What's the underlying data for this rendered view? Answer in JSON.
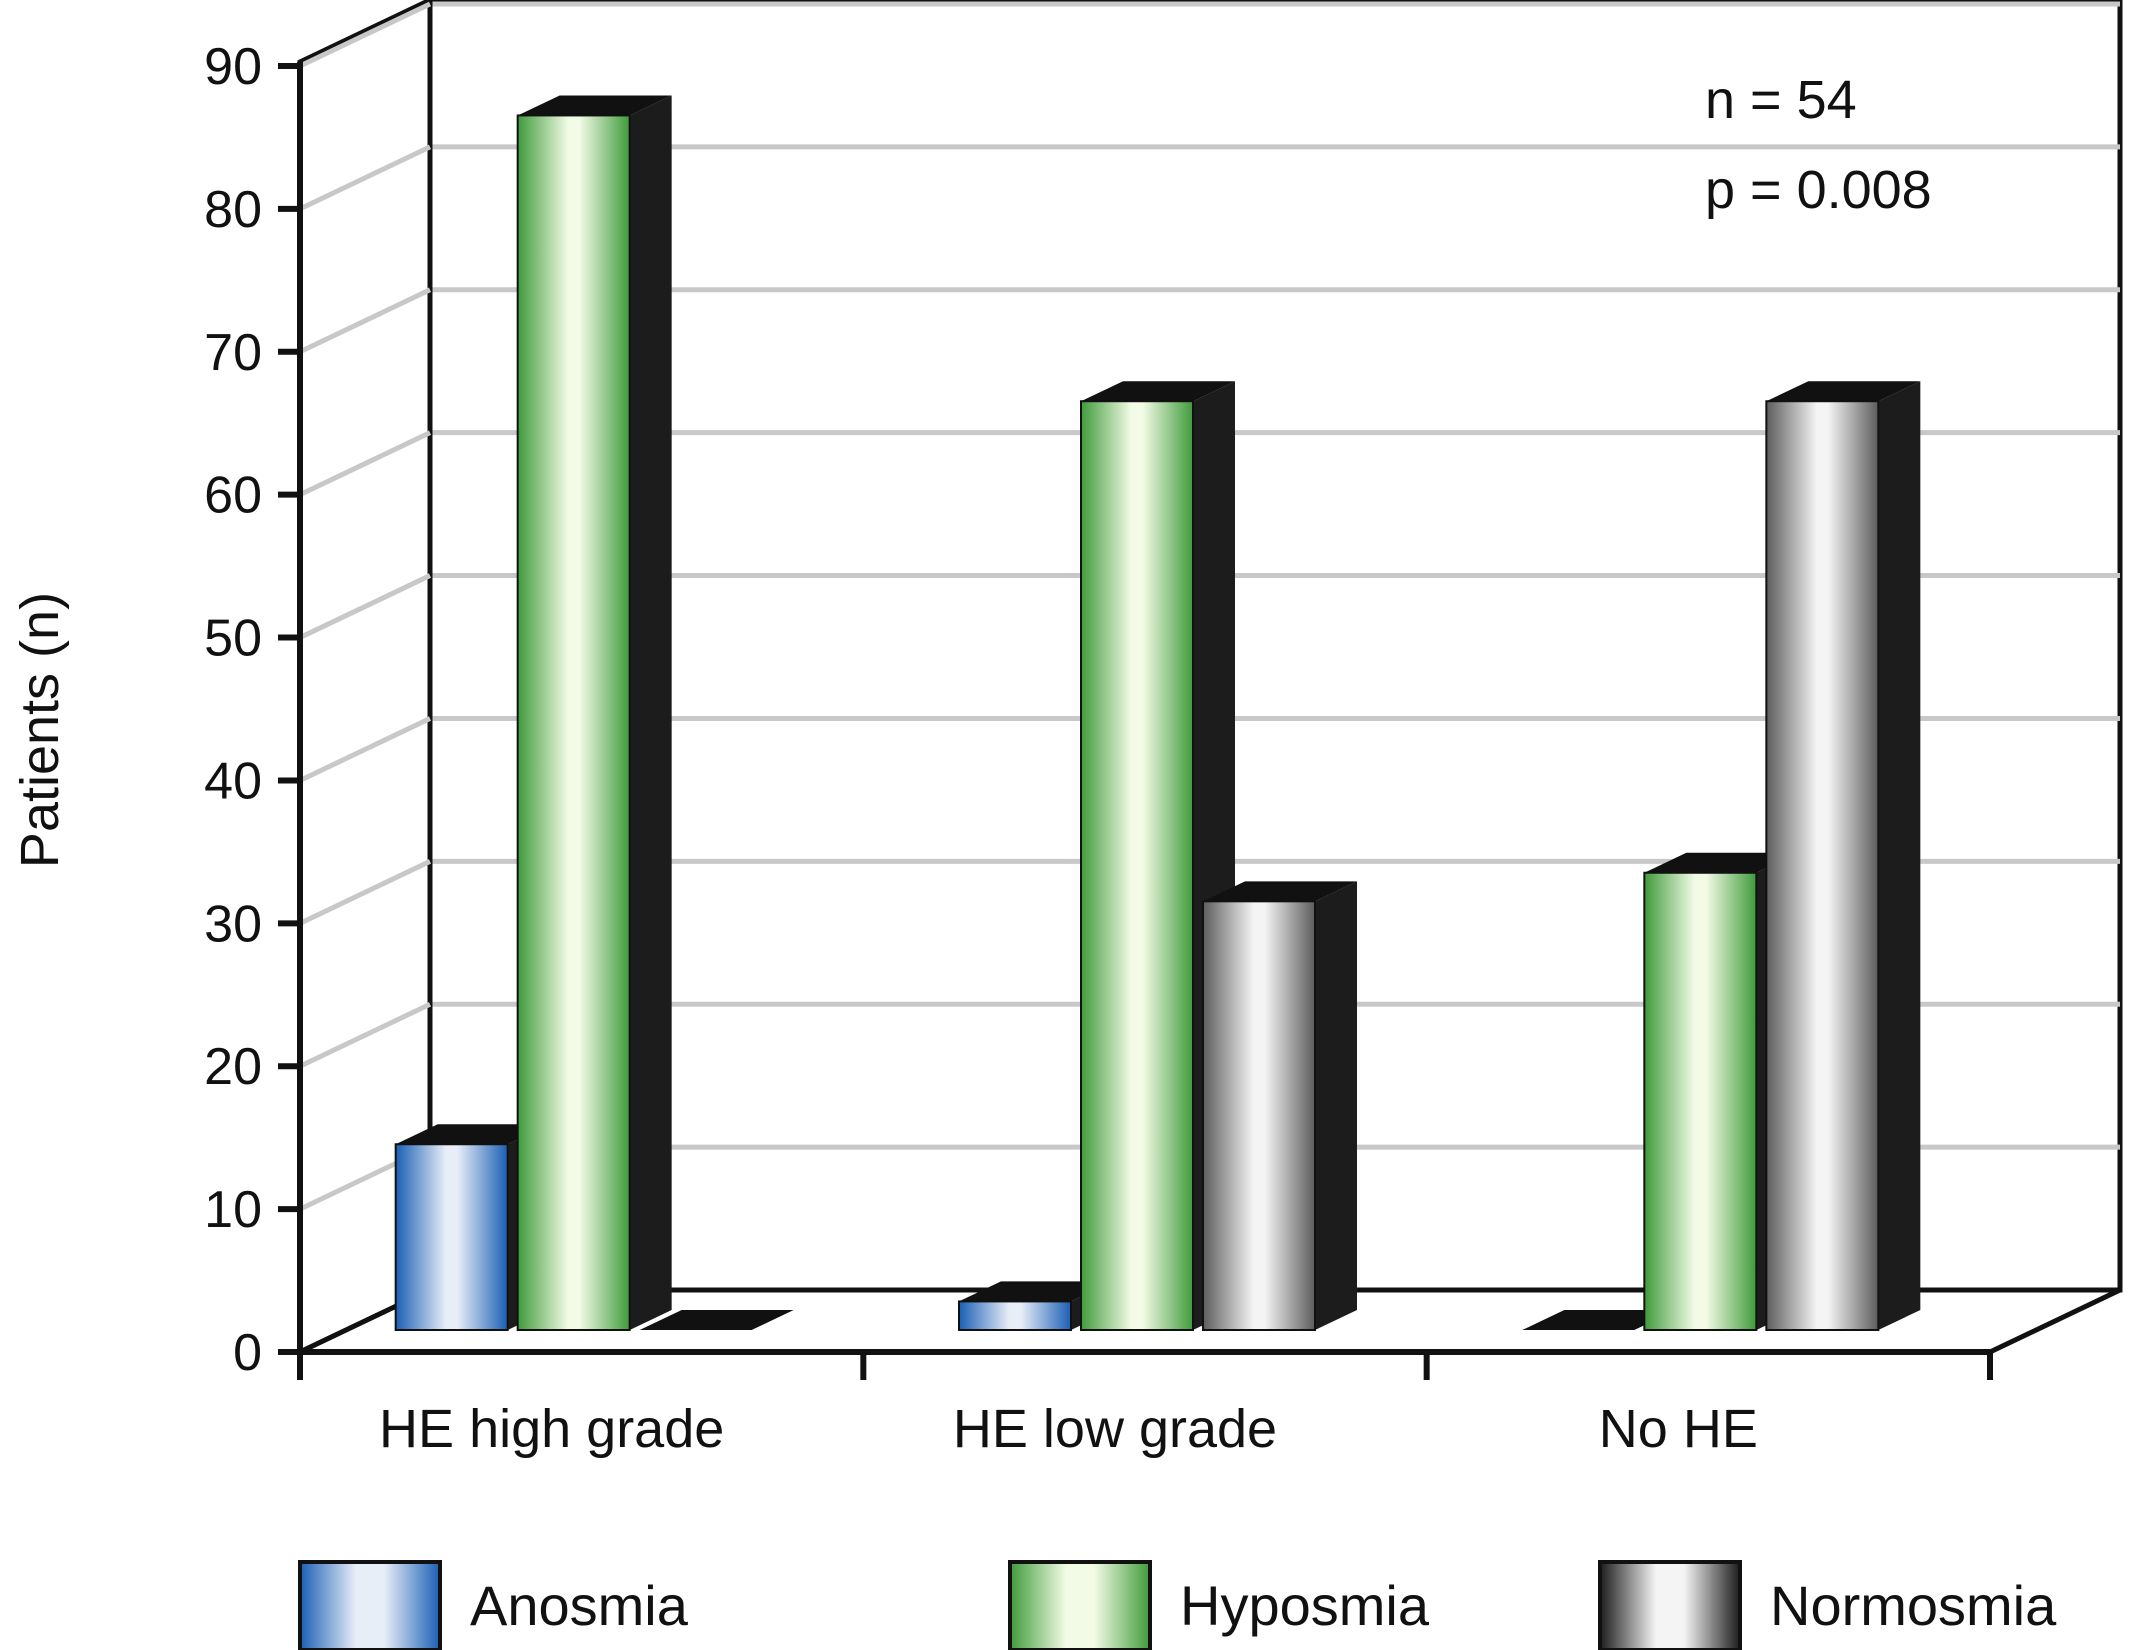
{
  "chart_data": {
    "type": "bar",
    "title": "",
    "xlabel": "",
    "ylabel": "Patients (n)",
    "ylim": [
      0,
      90
    ],
    "yticks": [
      "0",
      "10",
      "20",
      "30",
      "40",
      "50",
      "60",
      "70",
      "80",
      "90"
    ],
    "grid": true,
    "legend_position": "bottom",
    "categories": [
      "HE high grade",
      "HE low grade",
      "No HE"
    ],
    "series": [
      {
        "name": "Anosmia",
        "values": [
          13,
          2,
          0
        ],
        "color": "#1a5fb4",
        "highlight": "#e8eef8"
      },
      {
        "name": "Hyposmia",
        "values": [
          85,
          65,
          32
        ],
        "color": "#3f9b3a",
        "highlight": "#f2fbe6"
      },
      {
        "name": "Normosmia",
        "values": [
          0,
          30,
          65
        ],
        "color": "#5c5c5c",
        "highlight": "#f4f4f4"
      }
    ],
    "annotations": [
      "n = 54",
      "p = 0.008"
    ]
  }
}
